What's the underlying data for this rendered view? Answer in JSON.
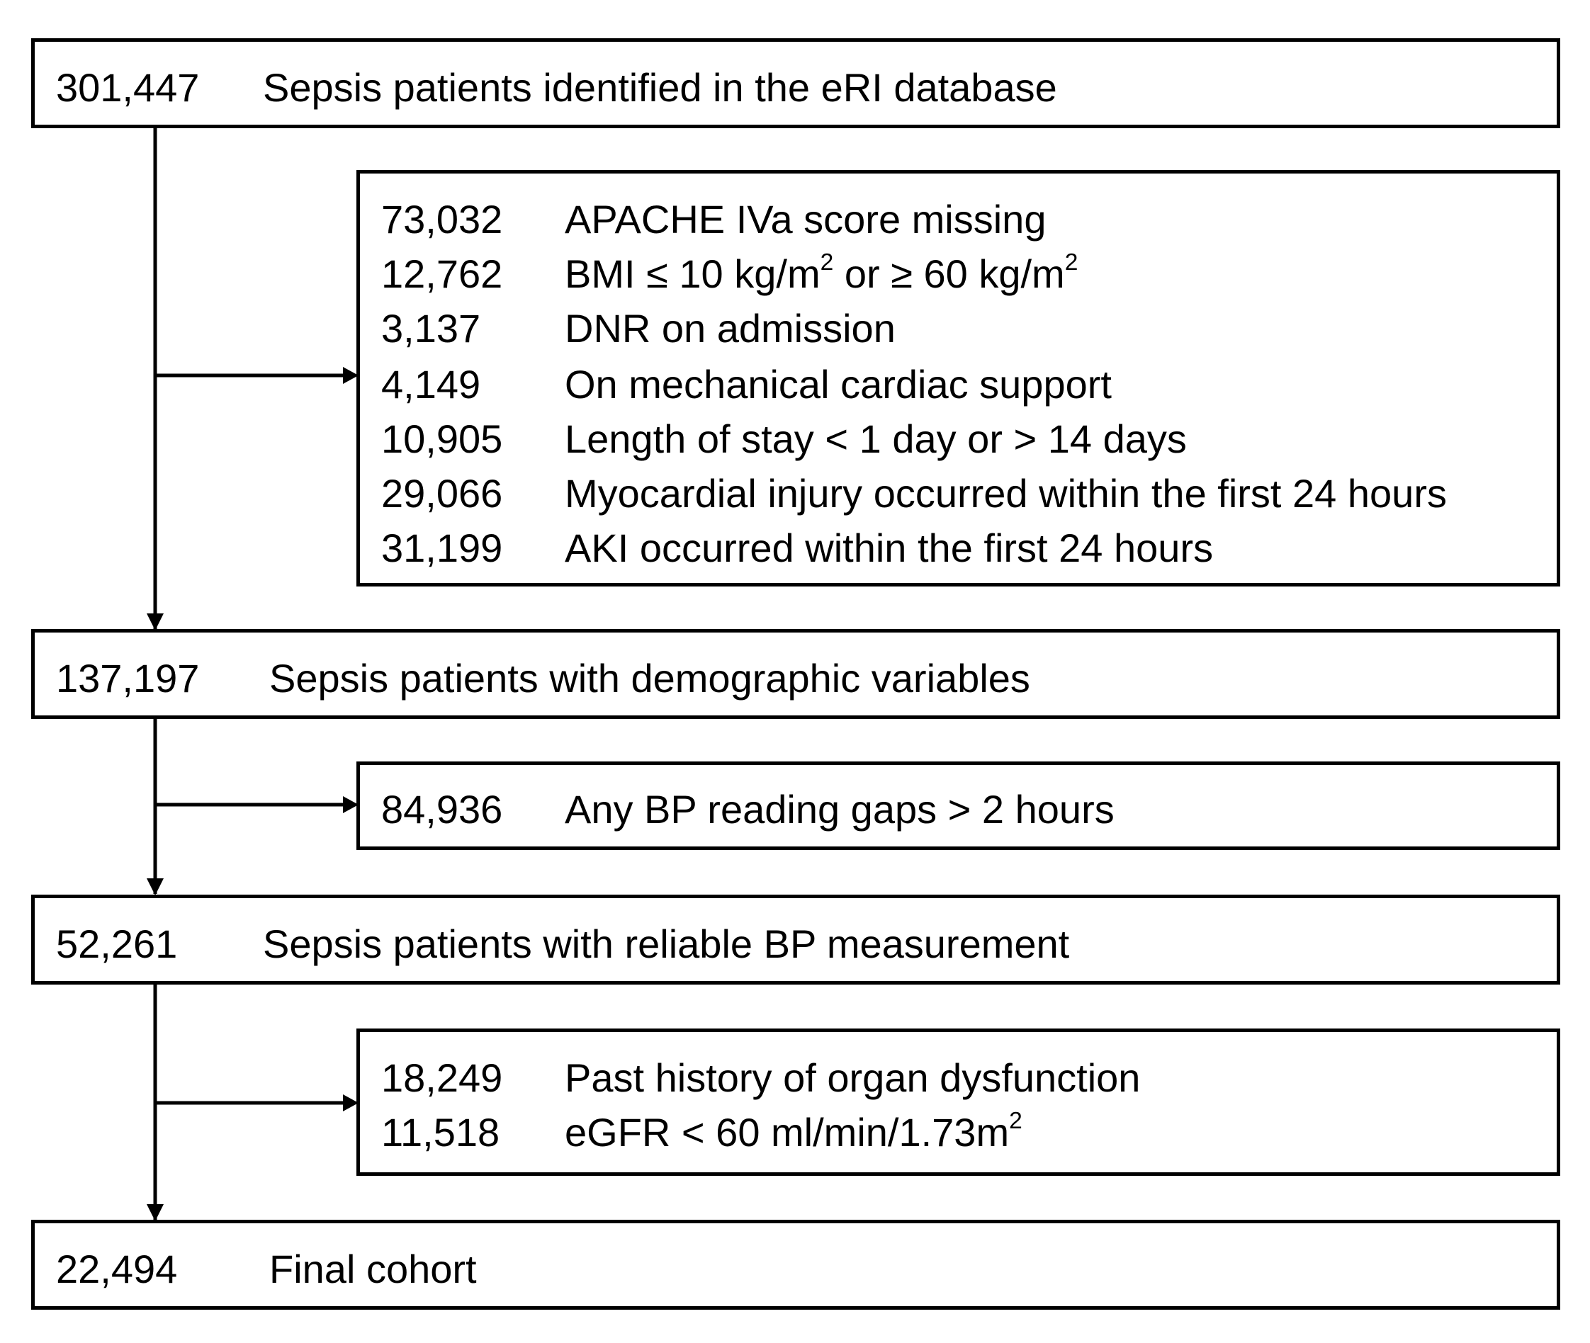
{
  "main_steps": [
    {
      "count": "301,447",
      "label": "Sepsis patients identified in the eRI database"
    },
    {
      "count": "137,197",
      "label": "Sepsis patients with demographic variables"
    },
    {
      "count": "52,261",
      "label": "Sepsis patients with reliable BP measurement"
    },
    {
      "count": "22,494",
      "label": "Final cohort"
    }
  ],
  "exclusions_1": [
    {
      "count": "73,032",
      "label": "APACHE IVa score missing"
    },
    {
      "count": "12,762",
      "label_a": "BMI ≤ 10 kg/m",
      "sup_a": "2",
      "label_b": " or ≥ 60 kg/m",
      "sup_b": "2"
    },
    {
      "count": "3,137",
      "label": "DNR on admission"
    },
    {
      "count": "4,149",
      "label": "On mechanical cardiac support"
    },
    {
      "count": "10,905",
      "label": "Length of stay < 1 day or > 14 days"
    },
    {
      "count": "29,066",
      "label": "Myocardial injury occurred within the first 24 hours"
    },
    {
      "count": "31,199",
      "label": "AKI occurred within the first 24 hours"
    }
  ],
  "exclusions_2": [
    {
      "count": "84,936",
      "label": "Any BP reading gaps > 2 hours"
    }
  ],
  "exclusions_3": [
    {
      "count": "18,249",
      "label": "Past history of organ dysfunction"
    },
    {
      "count": "11,518",
      "label_a": "eGFR < 60 ml/min/1.73m",
      "sup_a": "2"
    }
  ]
}
